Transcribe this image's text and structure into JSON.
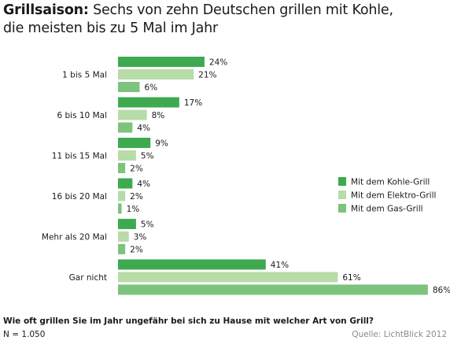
{
  "title": {
    "bold": "Grillsaison:",
    "line1_rest": " Sechs von zehn Deutschen grillen mit Kohle,",
    "line2": "die meisten bis zu 5 Mal im Jahr"
  },
  "footer": {
    "question": "Wie oft grillen Sie im Jahr ungefähr bei sich zu Hause mit welcher Art von Grill?",
    "n": "N = 1.050",
    "source": "Quelle: LichtBlick 2012"
  },
  "colors": {
    "kohle": "#3daa4f",
    "elektro": "#b7dca7",
    "gas": "#7cc37e"
  },
  "chart_data": {
    "type": "bar",
    "orientation": "horizontal",
    "categories": [
      "1 bis 5 Mal",
      "6 bis 10 Mal",
      "11 bis 15 Mal",
      "16 bis 20 Mal",
      "Mehr als 20 Mal",
      "Gar nicht"
    ],
    "series": [
      {
        "name": "Mit dem Kohle-Grill",
        "values": [
          24,
          17,
          9,
          4,
          5,
          41
        ],
        "labels": [
          "24%",
          "17%",
          "9%",
          "4%",
          "5%",
          "41%"
        ],
        "color": "#3daa4f"
      },
      {
        "name": "Mit dem Elektro-Grill",
        "values": [
          21,
          8,
          5,
          2,
          3,
          61
        ],
        "labels": [
          "21%",
          "8%",
          "5%",
          "2%",
          "3%",
          "61%"
        ],
        "color": "#b7dca7"
      },
      {
        "name": "Mit dem Gas-Grill",
        "values": [
          6,
          4,
          2,
          1,
          2,
          86
        ],
        "labels": [
          "6%",
          "4%",
          "2%",
          "1%",
          "2%",
          "86%"
        ],
        "color": "#7cc37e"
      }
    ],
    "unit": "%",
    "xlim": [
      0,
      86
    ],
    "grid": false,
    "legend_position": "right"
  }
}
